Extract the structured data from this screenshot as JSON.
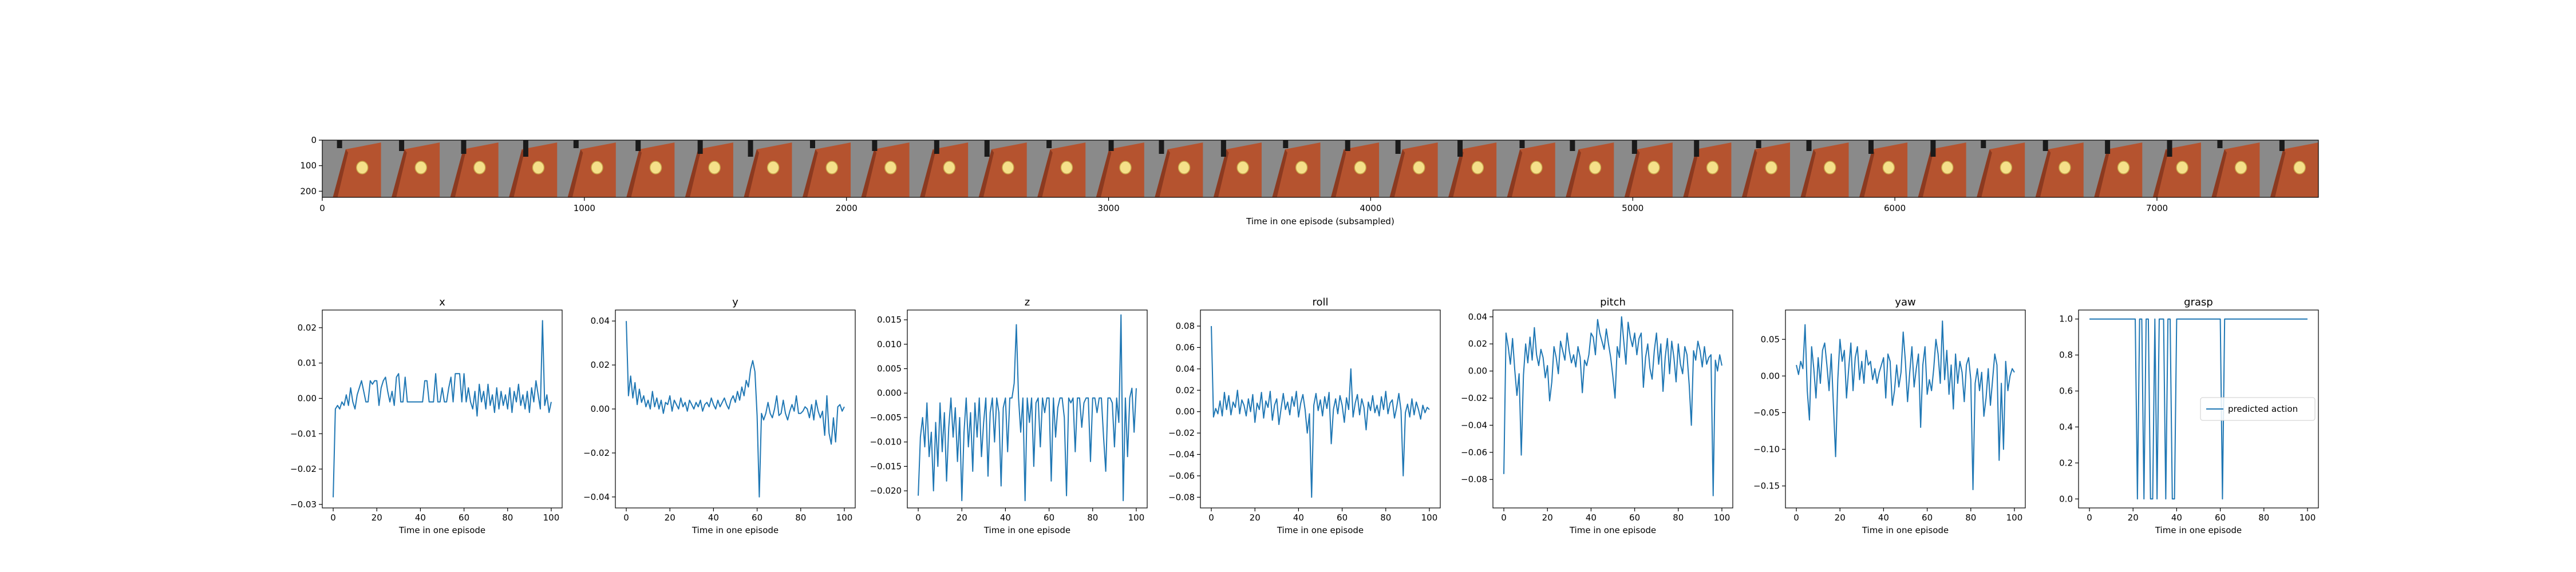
{
  "filmstrip": {
    "xlabel": "Time in one episode (subsampled)",
    "x_ticks": [
      "0",
      "1000",
      "2000",
      "3000",
      "4000",
      "5000",
      "6000",
      "7000"
    ],
    "x_tick_values": [
      0,
      1000,
      2000,
      3000,
      4000,
      5000,
      6000,
      7000
    ],
    "x_range": [
      0,
      7616
    ],
    "y_ticks": [
      "0",
      "100",
      "200"
    ],
    "y_tick_values": [
      0,
      100,
      200
    ],
    "y_range": [
      0,
      224
    ],
    "frame_count": 34,
    "frame_width": 224,
    "colors": {
      "background": "#8a8a8a",
      "cloth": "#b5532f",
      "cloth_dark": "#8c3a20",
      "ball": "#f5e08a",
      "ball_edge": "#c8a64a",
      "gripper": "#1a1a1a"
    }
  },
  "chart_data": [
    {
      "type": "line",
      "title": "x",
      "xlabel": "Time in one episode",
      "ylabel": "",
      "xlim": [
        -5,
        105
      ],
      "ylim": [
        -0.031,
        0.025
      ],
      "x_ticks": [
        0,
        20,
        40,
        60,
        80,
        100
      ],
      "x_tick_labels": [
        "0",
        "20",
        "40",
        "60",
        "80",
        "100"
      ],
      "y_ticks": [
        -0.03,
        -0.02,
        -0.01,
        0.0,
        0.01,
        0.02
      ],
      "y_tick_labels": [
        "−0.03",
        "−0.02",
        "−0.01",
        "0.00",
        "0.01",
        "0.02"
      ],
      "series": [
        {
          "name": "predicted action",
          "color": "#1f77b4",
          "values": [
            -0.028,
            -0.003,
            -0.002,
            -0.003,
            -0.001,
            -0.002,
            0.001,
            -0.002,
            0.003,
            -0.001,
            -0.003,
            0.001,
            0.003,
            0.005,
            0.002,
            -0.001,
            -0.001,
            0.005,
            0.004,
            0.005,
            0.005,
            -0.002,
            0.003,
            0.005,
            0.006,
            0.002,
            -0.001,
            0.002,
            -0.002,
            0.006,
            0.007,
            -0.001,
            -0.001,
            0.006,
            -0.001,
            -0.001,
            -0.001,
            -0.001,
            -0.001,
            -0.001,
            -0.001,
            -0.001,
            0.005,
            0.005,
            -0.001,
            -0.001,
            -0.001,
            0.007,
            -0.001,
            -0.001,
            0.003,
            -0.001,
            -0.001,
            0.003,
            0.006,
            -0.001,
            0.007,
            0.007,
            0.007,
            -0.001,
            0.007,
            -0.001,
            0.003,
            -0.001,
            -0.003,
            0.002,
            -0.005,
            0.004,
            -0.001,
            0.002,
            -0.003,
            0.004,
            -0.002,
            0.001,
            -0.004,
            0.003,
            -0.003,
            0.002,
            -0.002,
            0.001,
            -0.003,
            0.003,
            -0.004,
            0.002,
            -0.001,
            0.004,
            -0.002,
            0.001,
            -0.003,
            0.002,
            -0.004,
            0.003,
            -0.001,
            0.005,
            0.001,
            -0.003,
            0.022,
            -0.002,
            0.001,
            -0.004,
            -0.001
          ]
        }
      ]
    },
    {
      "type": "line",
      "title": "y",
      "xlabel": "Time in one episode",
      "ylabel": "",
      "xlim": [
        -5,
        105
      ],
      "ylim": [
        -0.045,
        0.045
      ],
      "x_ticks": [
        0,
        20,
        40,
        60,
        80,
        100
      ],
      "x_tick_labels": [
        "0",
        "20",
        "40",
        "60",
        "80",
        "100"
      ],
      "y_ticks": [
        -0.04,
        -0.02,
        0.0,
        0.02,
        0.04
      ],
      "y_tick_labels": [
        "−0.04",
        "−0.02",
        "0.00",
        "0.02",
        "0.04"
      ],
      "series": [
        {
          "name": "predicted action",
          "color": "#1f77b4",
          "values": [
            0.04,
            0.006,
            0.015,
            0.005,
            0.012,
            0.002,
            0.009,
            0.003,
            0.006,
            0.001,
            0.004,
            0.0,
            0.008,
            0.001,
            0.005,
            0.0,
            0.004,
            -0.002,
            0.003,
            0.002,
            0.006,
            -0.001,
            0.004,
            0.002,
            0.0,
            0.005,
            0.001,
            0.003,
            -0.001,
            0.004,
            0.002,
            0.0,
            0.003,
            0.001,
            0.004,
            -0.001,
            0.002,
            0.003,
            0.001,
            0.005,
            0.002,
            0.0,
            0.004,
            0.001,
            0.003,
            0.005,
            0.002,
            0.0,
            0.004,
            0.006,
            0.003,
            0.008,
            0.004,
            0.01,
            0.006,
            0.013,
            0.01,
            0.018,
            0.022,
            0.017,
            -0.003,
            -0.04,
            -0.002,
            -0.005,
            -0.002,
            0.003,
            -0.002,
            -0.004,
            0.0,
            0.006,
            -0.003,
            -0.002,
            0.004,
            -0.002,
            -0.005,
            -0.001,
            0.002,
            -0.001,
            0.006,
            -0.002,
            -0.002,
            -0.001,
            0.001,
            0.0,
            -0.004,
            0.002,
            -0.005,
            0.004,
            -0.001,
            -0.004,
            -0.001,
            -0.012,
            0.006,
            -0.011,
            -0.016,
            -0.004,
            -0.015,
            0.001,
            0.002,
            -0.001,
            0.001
          ]
        }
      ]
    },
    {
      "type": "line",
      "title": "z",
      "xlabel": "Time in one episode",
      "ylabel": "",
      "xlim": [
        -5,
        105
      ],
      "ylim": [
        -0.0235,
        0.017
      ],
      "x_ticks": [
        0,
        20,
        40,
        60,
        80,
        100
      ],
      "x_tick_labels": [
        "0",
        "20",
        "40",
        "60",
        "80",
        "100"
      ],
      "y_ticks": [
        -0.02,
        -0.015,
        -0.01,
        -0.005,
        0.0,
        0.005,
        0.01,
        0.015
      ],
      "y_tick_labels": [
        "−0.020",
        "−0.015",
        "−0.010",
        "−0.005",
        "0.000",
        "0.005",
        "0.010",
        "0.015"
      ],
      "series": [
        {
          "name": "predicted action",
          "color": "#1f77b4",
          "values": [
            -0.021,
            -0.009,
            -0.005,
            -0.011,
            -0.002,
            -0.013,
            -0.008,
            -0.02,
            -0.006,
            -0.015,
            -0.002,
            -0.012,
            -0.004,
            -0.018,
            -0.007,
            -0.001,
            -0.009,
            -0.003,
            -0.014,
            -0.005,
            -0.022,
            -0.008,
            -0.001,
            -0.011,
            -0.004,
            -0.016,
            -0.002,
            -0.009,
            -0.001,
            -0.013,
            -0.006,
            -0.001,
            -0.017,
            -0.004,
            -0.001,
            -0.01,
            -0.001,
            -0.004,
            -0.019,
            -0.003,
            -0.001,
            -0.012,
            -0.001,
            -0.001,
            0.002,
            0.014,
            -0.001,
            -0.008,
            -0.001,
            -0.022,
            -0.001,
            -0.006,
            -0.001,
            -0.015,
            -0.002,
            -0.001,
            -0.011,
            -0.001,
            -0.004,
            -0.001,
            -0.001,
            -0.018,
            -0.001,
            -0.009,
            -0.003,
            -0.001,
            -0.001,
            -0.005,
            -0.021,
            -0.001,
            -0.002,
            -0.001,
            -0.012,
            -0.001,
            -0.001,
            -0.007,
            -0.002,
            -0.001,
            -0.001,
            -0.014,
            -0.001,
            -0.001,
            -0.004,
            -0.001,
            -0.001,
            -0.009,
            -0.016,
            -0.001,
            -0.001,
            -0.002,
            -0.011,
            -0.001,
            -0.006,
            0.016,
            -0.022,
            -0.001,
            -0.013,
            -0.001,
            0.001,
            -0.008,
            0.001
          ]
        }
      ]
    },
    {
      "type": "line",
      "title": "roll",
      "xlabel": "Time in one episode",
      "ylabel": "",
      "xlim": [
        -5,
        105
      ],
      "ylim": [
        -0.09,
        0.095
      ],
      "x_ticks": [
        0,
        20,
        40,
        60,
        80,
        100
      ],
      "x_tick_labels": [
        "0",
        "20",
        "40",
        "60",
        "80",
        "100"
      ],
      "y_ticks": [
        -0.08,
        -0.06,
        -0.04,
        -0.02,
        0.0,
        0.02,
        0.04,
        0.06,
        0.08
      ],
      "y_tick_labels": [
        "−0.08",
        "−0.06",
        "−0.04",
        "−0.02",
        "0.00",
        "0.02",
        "0.04",
        "0.06",
        "0.08"
      ],
      "series": [
        {
          "name": "predicted action",
          "color": "#1f77b4",
          "values": [
            0.08,
            -0.005,
            0.003,
            -0.002,
            0.01,
            -0.004,
            0.018,
            0.002,
            0.015,
            -0.003,
            0.009,
            0.004,
            0.02,
            -0.002,
            0.011,
            0.006,
            -0.004,
            0.012,
            0.0,
            0.016,
            -0.01,
            0.008,
            0.002,
            0.018,
            -0.006,
            0.01,
            0.004,
            0.019,
            -0.008,
            0.006,
            0.012,
            -0.012,
            0.003,
            0.017,
            0.002,
            0.009,
            -0.003,
            0.014,
            0.005,
            0.019,
            -0.005,
            0.008,
            0.016,
            0.002,
            -0.02,
            -0.002,
            -0.08,
            0.006,
            0.017,
            0.001,
            0.011,
            -0.004,
            0.014,
            0.003,
            0.018,
            -0.03,
            0.002,
            0.012,
            -0.002,
            0.015,
            0.006,
            -0.01,
            0.013,
            0.002,
            0.04,
            -0.005,
            0.008,
            0.016,
            -0.003,
            0.012,
            0.004,
            -0.017,
            0.009,
            0.001,
            0.015,
            -0.001,
            0.006,
            -0.004,
            0.014,
            0.002,
            0.019,
            -0.002,
            0.008,
            0.011,
            -0.006,
            0.004,
            0.017,
            0.001,
            -0.06,
            -0.001,
            0.007,
            -0.005,
            0.012,
            -0.003,
            0.009,
            0.002,
            -0.007,
            0.006,
            -0.001,
            0.004,
            0.002
          ]
        }
      ]
    },
    {
      "type": "line",
      "title": "pitch",
      "xlabel": "Time in one episode",
      "ylabel": "",
      "xlim": [
        -5,
        105
      ],
      "ylim": [
        -0.101,
        0.045
      ],
      "x_ticks": [
        0,
        20,
        40,
        60,
        80,
        100
      ],
      "x_tick_labels": [
        "0",
        "20",
        "40",
        "60",
        "80",
        "100"
      ],
      "y_ticks": [
        -0.08,
        -0.06,
        -0.04,
        -0.02,
        0.0,
        0.02,
        0.04
      ],
      "y_tick_labels": [
        "−0.08",
        "−0.06",
        "−0.04",
        "−0.02",
        "0.00",
        "0.02",
        "0.04"
      ],
      "series": [
        {
          "name": "predicted action",
          "color": "#1f77b4",
          "values": [
            -0.076,
            0.028,
            0.018,
            0.005,
            0.024,
            0.001,
            -0.018,
            -0.002,
            -0.062,
            -0.003,
            0.02,
            0.006,
            0.025,
            0.008,
            0.032,
            0.012,
            0.004,
            0.016,
            0.01,
            -0.005,
            0.004,
            -0.022,
            -0.008,
            0.018,
            0.01,
            -0.002,
            0.022,
            0.015,
            0.008,
            0.028,
            0.015,
            0.006,
            0.012,
            0.003,
            0.018,
            0.01,
            -0.016,
            0.008,
            0.004,
            0.012,
            0.028,
            0.025,
            0.012,
            0.038,
            0.028,
            0.022,
            0.016,
            0.031,
            0.02,
            0.01,
            -0.004,
            -0.02,
            0.018,
            0.01,
            0.04,
            0.022,
            0.005,
            0.036,
            0.025,
            0.018,
            0.028,
            0.012,
            0.024,
            0.028,
            -0.012,
            0.01,
            0.02,
            0.002,
            -0.006,
            0.015,
            0.028,
            0.005,
            0.02,
            -0.015,
            0.01,
            0.024,
            -0.002,
            0.022,
            0.01,
            -0.008,
            0.02,
            0.005,
            -0.002,
            0.018,
            0.012,
            -0.01,
            -0.04,
            0.015,
            0.008,
            0.022,
            0.015,
            0.003,
            0.018,
            0.005,
            0.01,
            0.012,
            -0.092,
            0.008,
            0.0,
            0.012,
            0.004
          ]
        }
      ]
    },
    {
      "type": "line",
      "title": "yaw",
      "xlabel": "Time in one episode",
      "ylabel": "",
      "xlim": [
        -5,
        105
      ],
      "ylim": [
        -0.18,
        0.09
      ],
      "x_ticks": [
        0,
        20,
        40,
        60,
        80,
        100
      ],
      "x_tick_labels": [
        "0",
        "20",
        "40",
        "60",
        "80",
        "100"
      ],
      "y_ticks": [
        -0.15,
        -0.1,
        -0.05,
        0.0,
        0.05
      ],
      "y_tick_labels": [
        "−0.15",
        "−0.10",
        "−0.05",
        "0.00",
        "0.05"
      ],
      "series": [
        {
          "name": "predicted action",
          "color": "#1f77b4",
          "values": [
            0.015,
            0.002,
            0.02,
            0.01,
            0.07,
            -0.02,
            -0.06,
            0.04,
            0.01,
            -0.03,
            0.025,
            -0.01,
            0.035,
            0.045,
            0.015,
            -0.02,
            0.03,
            -0.04,
            -0.11,
            -0.005,
            0.05,
            0.02,
            0.035,
            -0.03,
            0.01,
            0.045,
            -0.02,
            0.025,
            0.04,
            -0.005,
            0.02,
            -0.01,
            0.035,
            0.015,
            0.02,
            -0.005,
            0.01,
            -0.01,
            0.005,
            0.015,
            0.025,
            -0.03,
            0.03,
            0.02,
            -0.04,
            -0.02,
            0.015,
            -0.015,
            0.005,
            0.06,
            0.02,
            -0.035,
            0.005,
            0.04,
            -0.015,
            0.01,
            0.03,
            -0.07,
            0.015,
            0.04,
            -0.025,
            -0.005,
            -0.02,
            0.01,
            0.05,
            0.03,
            -0.01,
            0.075,
            -0.005,
            0.035,
            -0.025,
            0.015,
            -0.045,
            0.03,
            -0.01,
            0.02,
            0.005,
            -0.035,
            0.015,
            0.025,
            -0.005,
            -0.155,
            -0.01,
            0.01,
            -0.02,
            0.005,
            -0.055,
            -0.03,
            0.01,
            -0.04,
            -0.005,
            0.03,
            0.015,
            -0.115,
            -0.01,
            -0.1,
            0.02,
            -0.02,
            0.0,
            0.01,
            0.005
          ]
        }
      ]
    },
    {
      "type": "line",
      "title": "grasp",
      "xlabel": "Time in one episode",
      "ylabel": "",
      "xlim": [
        -5,
        105
      ],
      "ylim": [
        -0.05,
        1.05
      ],
      "x_ticks": [
        0,
        20,
        40,
        60,
        80,
        100
      ],
      "x_tick_labels": [
        "0",
        "20",
        "40",
        "60",
        "80",
        "100"
      ],
      "y_ticks": [
        0.0,
        0.2,
        0.4,
        0.6,
        0.8,
        1.0
      ],
      "y_tick_labels": [
        "0.0",
        "0.2",
        "0.4",
        "0.6",
        "0.8",
        "1.0"
      ],
      "legend": {
        "label": "predicted action",
        "loc": "center right"
      },
      "series": [
        {
          "name": "predicted action",
          "color": "#1f77b4",
          "values": [
            1,
            1,
            1,
            1,
            1,
            1,
            1,
            1,
            1,
            1,
            1,
            1,
            1,
            1,
            1,
            1,
            1,
            1,
            1,
            1,
            1,
            1,
            0,
            1,
            1,
            0,
            1,
            1,
            0,
            0,
            1,
            0,
            1,
            1,
            1,
            0,
            1,
            1,
            0,
            0,
            1,
            1,
            1,
            1,
            1,
            1,
            1,
            1,
            1,
            1,
            1,
            1,
            1,
            1,
            1,
            1,
            1,
            1,
            1,
            1,
            1,
            0,
            1,
            1,
            1,
            1,
            1,
            1,
            1,
            1,
            1,
            1,
            1,
            1,
            1,
            1,
            1,
            1,
            1,
            1,
            1,
            1,
            1,
            1,
            1,
            1,
            1,
            1,
            1,
            1,
            1,
            1,
            1,
            1,
            1,
            1,
            1,
            1,
            1,
            1,
            1
          ]
        }
      ]
    }
  ]
}
